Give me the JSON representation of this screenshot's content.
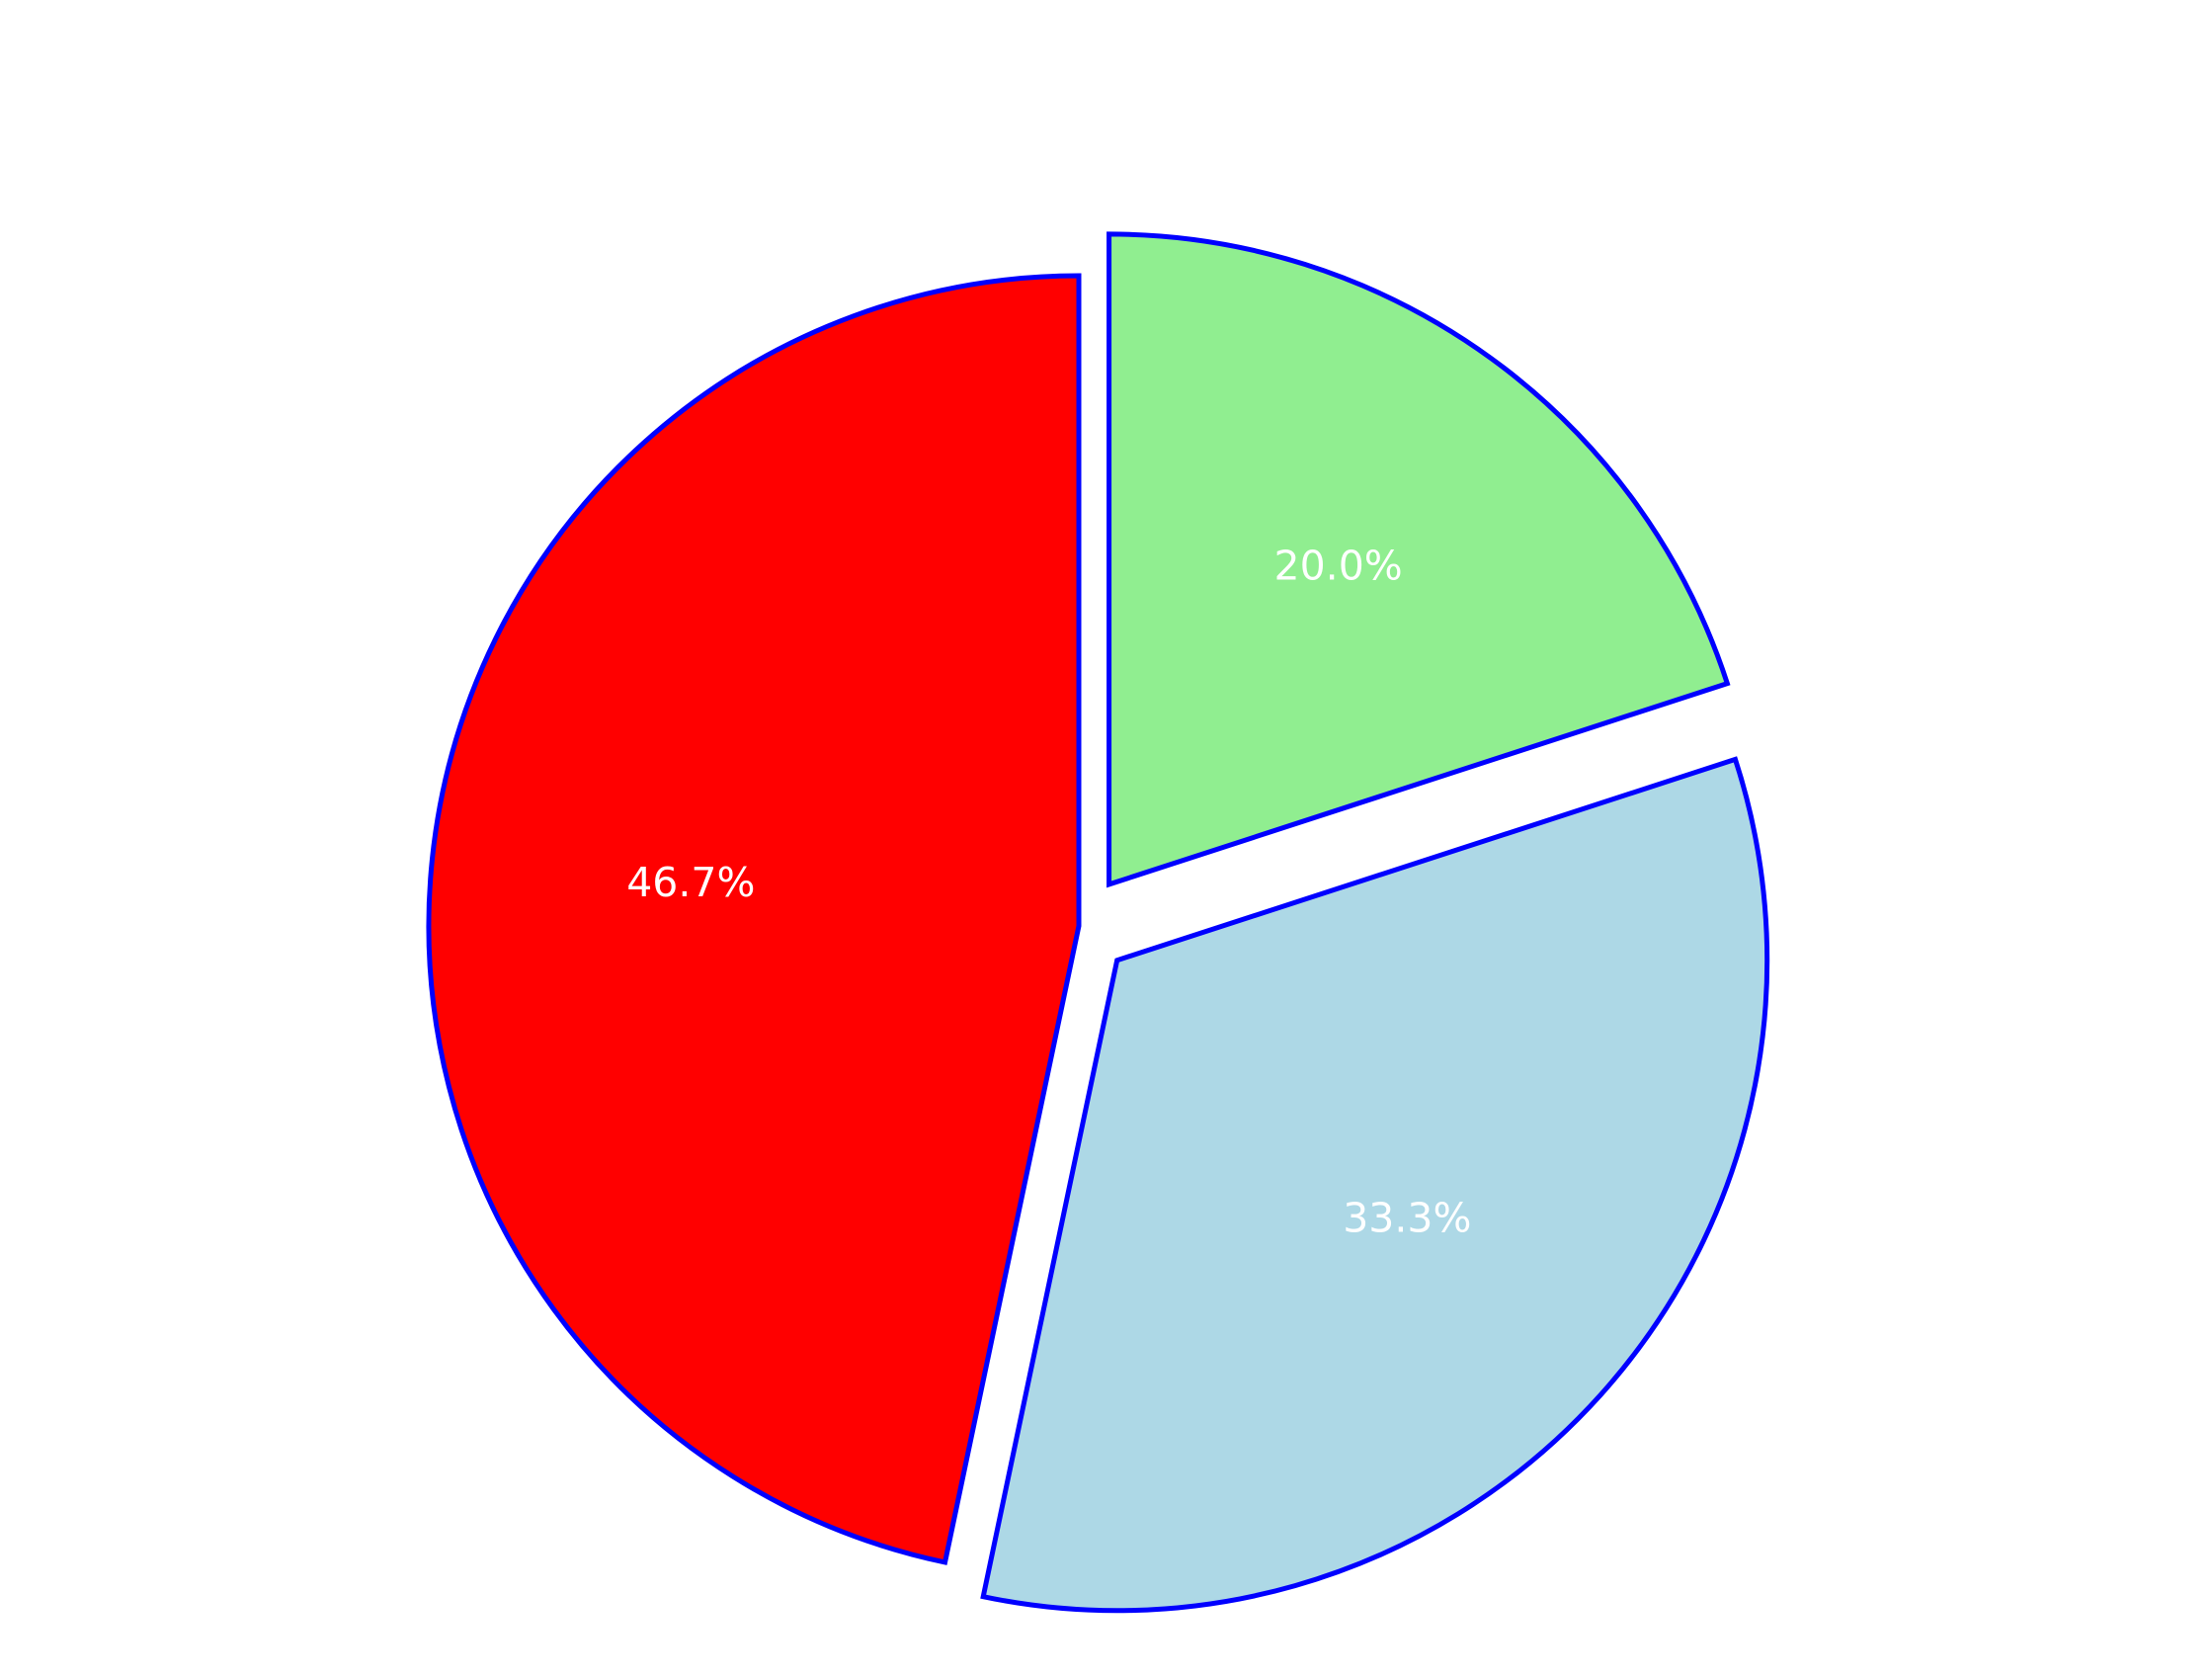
{
  "chart_data": {
    "type": "pie",
    "title": "",
    "start_angle_deg": 90,
    "direction": "clockwise",
    "edge_color": "#0000ff",
    "label_color": "#ffffff",
    "slices": [
      {
        "value": 20.0,
        "label": "20.0%",
        "color": "#90ee90",
        "exploded": true
      },
      {
        "value": 33.3,
        "label": "33.3%",
        "color": "#add8e6",
        "exploded": true
      },
      {
        "value": 46.7,
        "label": "46.7%",
        "color": "#ff0000",
        "exploded": false
      }
    ]
  }
}
